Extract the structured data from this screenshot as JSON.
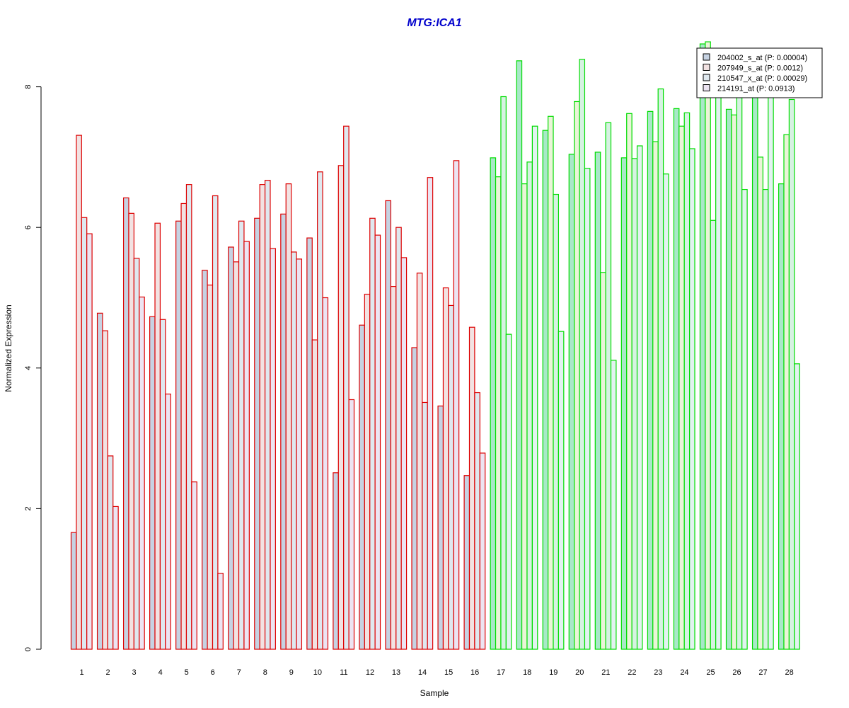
{
  "chart_data": {
    "type": "bar",
    "title": "MTG:ICA1",
    "title_color": "#0000cc",
    "xlabel": "Sample",
    "ylabel": "Normalized Expression",
    "ylim": [
      0,
      8.8
    ],
    "yticks": [
      0,
      2,
      4,
      6,
      8
    ],
    "grid": false,
    "legend_position": "top-right",
    "categories": [
      "1",
      "2",
      "3",
      "4",
      "5",
      "6",
      "7",
      "8",
      "9",
      "10",
      "11",
      "12",
      "13",
      "14",
      "15",
      "16",
      "17",
      "18",
      "19",
      "20",
      "21",
      "22",
      "23",
      "24",
      "25",
      "26",
      "27",
      "28"
    ],
    "group_outline_colors": [
      "#dd0000",
      "#dd0000",
      "#dd0000",
      "#dd0000",
      "#dd0000",
      "#dd0000",
      "#dd0000",
      "#dd0000",
      "#dd0000",
      "#dd0000",
      "#dd0000",
      "#dd0000",
      "#dd0000",
      "#dd0000",
      "#dd0000",
      "#dd0000",
      "#00dd00",
      "#00dd00",
      "#00dd00",
      "#00dd00",
      "#00dd00",
      "#00dd00",
      "#00dd00",
      "#00dd00",
      "#00dd00",
      "#00dd00",
      "#00dd00",
      "#00dd00"
    ],
    "series": [
      {
        "name": "204002_s_at (P: 0.00004)",
        "fill_red_group": "#c6d2e2",
        "fill_green_group": "#a8e8c8",
        "values": [
          1.66,
          4.78,
          6.42,
          4.73,
          6.09,
          5.39,
          5.72,
          6.13,
          6.19,
          5.85,
          2.51,
          4.61,
          6.38,
          4.29,
          3.46,
          2.47,
          6.99,
          8.37,
          7.38,
          7.04,
          7.07,
          6.99,
          7.65,
          7.69,
          8.61,
          7.68,
          8.41,
          6.62
        ]
      },
      {
        "name": "207949_s_at (P: 0.0012)",
        "fill_red_group": "#f2e2e2",
        "fill_green_group": "#eaf4d8",
        "values": [
          7.31,
          4.53,
          6.2,
          6.06,
          6.34,
          5.18,
          5.51,
          6.61,
          6.62,
          4.4,
          6.88,
          5.05,
          5.16,
          5.35,
          5.14,
          4.58,
          6.72,
          6.62,
          7.58,
          7.79,
          5.36,
          7.62,
          7.22,
          7.44,
          8.64,
          7.6,
          7.0,
          7.32
        ]
      },
      {
        "name": "210547_x_at (P: 0.00029)",
        "fill_red_group": "#dfe8ef",
        "fill_green_group": "#d6f2e2",
        "values": [
          6.14,
          2.75,
          5.56,
          4.69,
          6.61,
          6.45,
          6.09,
          6.67,
          5.65,
          6.79,
          7.44,
          6.13,
          6.0,
          3.51,
          4.89,
          3.65,
          7.86,
          6.93,
          6.47,
          8.39,
          7.49,
          6.98,
          7.97,
          7.63,
          6.1,
          8.28,
          6.54,
          7.82
        ]
      },
      {
        "name": "214191_at (P: 0.0913)",
        "fill_red_group": "#ece4f2",
        "fill_green_group": "#e2f2f0",
        "values": [
          5.91,
          2.03,
          5.01,
          3.63,
          2.38,
          1.08,
          5.8,
          5.7,
          5.55,
          5.0,
          3.55,
          5.89,
          5.57,
          6.71,
          6.95,
          2.79,
          4.48,
          7.44,
          4.52,
          6.84,
          4.11,
          7.16,
          6.76,
          7.12,
          8.38,
          6.54,
          8.1,
          4.06
        ]
      }
    ],
    "legend_swatches": [
      "#c6d2e2",
      "#f2e2e2",
      "#dfe8ef",
      "#ece4f2"
    ]
  }
}
